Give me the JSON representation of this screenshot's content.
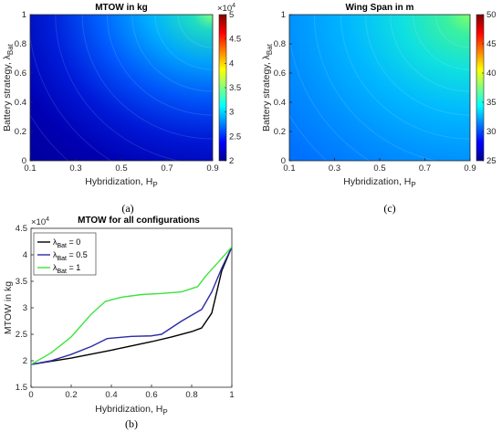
{
  "chart_data": [
    {
      "type": "heatmap",
      "title": "MTOW in kg",
      "xlabel": "Hybridization, H",
      "xlabel_sub": "P",
      "ylabel": "Battery strategy, λ",
      "ylabel_sub": "Bat",
      "xlim": [
        0.1,
        0.9
      ],
      "ylim": [
        0,
        1
      ],
      "xticks": [
        "0.1",
        "0.3",
        "0.5",
        "0.7",
        "0.9"
      ],
      "yticks": [
        "0",
        "0.2",
        "0.4",
        "0.6",
        "0.8",
        "1"
      ],
      "colorbar": {
        "min": 2,
        "max": 5,
        "ticks": [
          "2",
          "2.5",
          "3",
          "3.5",
          "4",
          "4.5",
          "5"
        ],
        "exponent": "×10",
        "exponent_power": "4"
      },
      "colormap": "jet",
      "caption": "(a)"
    },
    {
      "type": "heatmap",
      "title": "Wing Span in m",
      "xlabel": "Hybridization, H",
      "xlabel_sub": "P",
      "ylabel": "Battery strategy, λ",
      "ylabel_sub": "Bat",
      "xlim": [
        0.1,
        0.9
      ],
      "ylim": [
        0,
        1
      ],
      "xticks": [
        "0.1",
        "0.3",
        "0.5",
        "0.7",
        "0.9"
      ],
      "yticks": [
        "0",
        "0.2",
        "0.4",
        "0.6",
        "0.8",
        "1"
      ],
      "colorbar": {
        "min": 25,
        "max": 50,
        "ticks": [
          "25",
          "30",
          "35",
          "40",
          "45",
          "50"
        ]
      },
      "colormap": "jet",
      "caption": "(c)"
    },
    {
      "type": "line",
      "title": "MTOW for all configurations",
      "xlabel": "Hybridization, H",
      "xlabel_sub": "P",
      "ylabel": "MTOW in kg",
      "xlim": [
        0,
        1
      ],
      "ylim": [
        1.5,
        4.5
      ],
      "xticks": [
        "0",
        "0.2",
        "0.4",
        "0.6",
        "0.8",
        "1"
      ],
      "yticks": [
        "1.5",
        "2",
        "2.5",
        "3",
        "3.5",
        "4",
        "4.5"
      ],
      "y_exponent": "×10",
      "y_exponent_power": "4",
      "legend_position": "top-left",
      "series": [
        {
          "label": "λ",
          "label_sub": "Bat",
          "label_rest": " = 0",
          "color": "#000000",
          "x": [
            0,
            0.2,
            0.4,
            0.6,
            0.7,
            0.8,
            0.85,
            0.9,
            0.95,
            1.0
          ],
          "y": [
            1.93,
            2.05,
            2.2,
            2.36,
            2.45,
            2.55,
            2.62,
            2.9,
            3.7,
            4.15
          ]
        },
        {
          "label": "λ",
          "label_sub": "Bat",
          "label_rest": " = 0.5",
          "color": "#2b2ba8",
          "x": [
            0,
            0.1,
            0.2,
            0.3,
            0.38,
            0.5,
            0.6,
            0.65,
            0.75,
            0.85,
            0.9,
            0.95,
            1.0
          ],
          "y": [
            1.93,
            2.0,
            2.12,
            2.27,
            2.42,
            2.46,
            2.47,
            2.5,
            2.75,
            2.97,
            3.3,
            3.75,
            4.15
          ]
        },
        {
          "label": "λ",
          "label_sub": "Bat",
          "label_rest": " = 1",
          "color": "#3ee23e",
          "x": [
            0,
            0.1,
            0.2,
            0.3,
            0.37,
            0.45,
            0.55,
            0.65,
            0.75,
            0.83,
            0.87,
            0.93,
            1.0
          ],
          "y": [
            1.93,
            2.15,
            2.45,
            2.88,
            3.12,
            3.2,
            3.25,
            3.27,
            3.3,
            3.4,
            3.6,
            3.85,
            4.15
          ]
        }
      ],
      "caption": "(b)"
    }
  ]
}
